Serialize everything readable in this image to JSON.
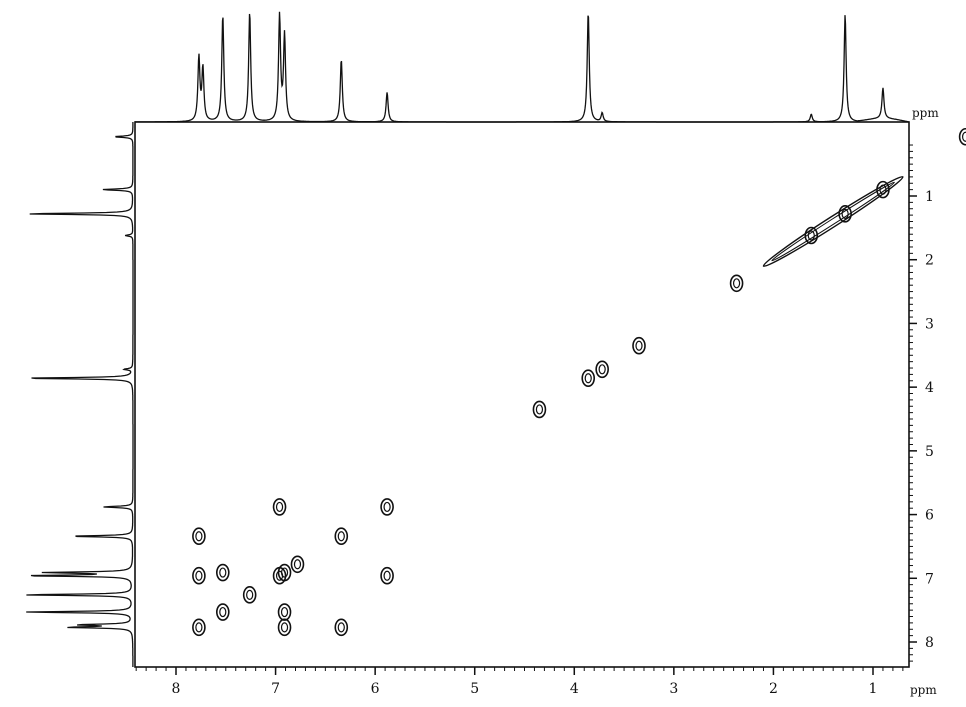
{
  "chart_data": {
    "type": "heatmap",
    "subtype": "2D NMR COSY contour plot",
    "x_unit_label": "ppm",
    "y_unit_label": "ppm",
    "x_axis": {
      "range": [
        8.4,
        -0.1
      ],
      "reversed": true,
      "ticks": [
        8,
        7,
        6,
        5,
        4,
        3,
        2,
        1
      ]
    },
    "y_axis": {
      "range": [
        0,
        8.5
      ],
      "reversed": true,
      "ticks": [
        1,
        2,
        3,
        4,
        5,
        6,
        7,
        8
      ]
    },
    "projection_1d_peaks": [
      {
        "ppm": 7.77,
        "height": 0.58
      },
      {
        "ppm": 7.73,
        "height": 0.48
      },
      {
        "ppm": 7.53,
        "height": 0.97
      },
      {
        "ppm": 7.26,
        "height": 1.0
      },
      {
        "ppm": 6.96,
        "height": 0.96
      },
      {
        "ppm": 6.91,
        "height": 0.78
      },
      {
        "ppm": 6.34,
        "height": 0.57
      },
      {
        "ppm": 5.88,
        "height": 0.27
      },
      {
        "ppm": 3.86,
        "height": 1.0
      },
      {
        "ppm": 3.72,
        "height": 0.08
      },
      {
        "ppm": 1.62,
        "height": 0.07
      },
      {
        "ppm": 1.28,
        "height": 0.98
      },
      {
        "ppm": 0.9,
        "height": 0.28
      },
      {
        "ppm": 0.07,
        "height": 0.17
      }
    ],
    "cross_peaks": [
      {
        "x": 6.96,
        "y": 5.88
      },
      {
        "x": 5.88,
        "y": 5.88
      },
      {
        "x": 7.77,
        "y": 6.34
      },
      {
        "x": 6.34,
        "y": 6.34
      },
      {
        "x": 7.77,
        "y": 6.96
      },
      {
        "x": 7.53,
        "y": 6.91
      },
      {
        "x": 6.91,
        "y": 6.91
      },
      {
        "x": 6.96,
        "y": 6.96
      },
      {
        "x": 6.78,
        "y": 6.78
      },
      {
        "x": 5.88,
        "y": 6.96
      },
      {
        "x": 7.26,
        "y": 7.26
      },
      {
        "x": 7.53,
        "y": 7.53
      },
      {
        "x": 6.91,
        "y": 7.53
      },
      {
        "x": 7.77,
        "y": 7.77
      },
      {
        "x": 6.91,
        "y": 7.77
      },
      {
        "x": 6.34,
        "y": 7.77
      },
      {
        "x": 3.86,
        "y": 3.86
      },
      {
        "x": 3.72,
        "y": 3.72
      },
      {
        "x": 4.35,
        "y": 4.35
      },
      {
        "x": 3.35,
        "y": 3.35
      },
      {
        "x": 1.28,
        "y": 1.28
      },
      {
        "x": 0.9,
        "y": 0.9
      },
      {
        "x": 1.62,
        "y": 1.62
      },
      {
        "x": 2.37,
        "y": 2.37
      },
      {
        "x": 0.07,
        "y": 0.07
      }
    ],
    "diagonal_ridge": [
      [
        2.1,
        2.1
      ],
      [
        0.7,
        0.7
      ]
    ]
  }
}
